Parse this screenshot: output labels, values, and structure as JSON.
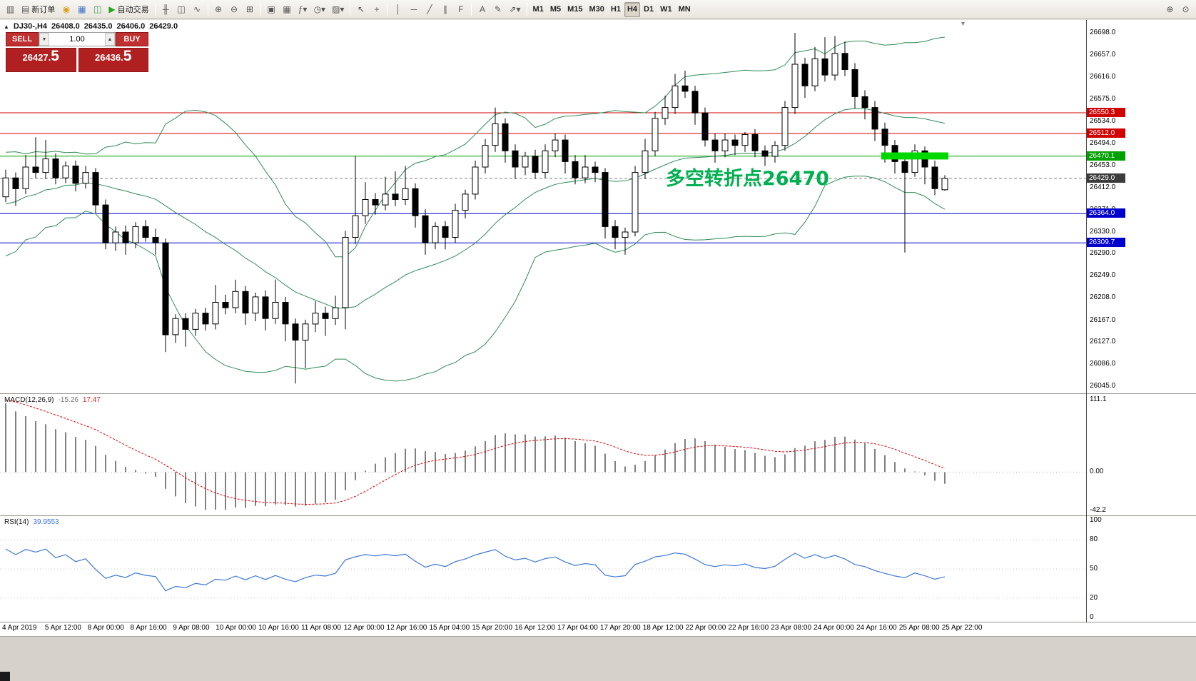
{
  "colors": {
    "window_bg": "#ece9e2",
    "pane_bg": "#ffffff",
    "bollinger": "#2e8b57",
    "macd_hist": "#808080",
    "macd_signal": "#e00000",
    "rsi_line": "#3c78d8",
    "one_click_red": "#c03030",
    "one_click_red_dark": "#b02020",
    "annotation_green": "#00b050",
    "highlight_green": "#00d800",
    "current_price_box": "#3c3c3c"
  },
  "toolbar": {
    "items": [
      {
        "name": "new-chart-button",
        "glyph": "▥"
      },
      {
        "name": "new-order-button",
        "glyph": "▤",
        "label": "新订单"
      },
      {
        "name": "alert-sound-button",
        "glyph": "◉",
        "accent": "#d8a020"
      },
      {
        "name": "market-watch-button",
        "glyph": "▦",
        "accent": "#3a6fc4"
      },
      {
        "name": "navigator-button",
        "glyph": "◫",
        "accent": "#3aa05a"
      },
      {
        "name": "autotrading-button",
        "glyph": "▶",
        "label": "自动交易",
        "accent": "#1fa51f"
      },
      {
        "type": "sep"
      },
      {
        "name": "bar-chart-type-button",
        "glyph": "╫"
      },
      {
        "name": "candlestick-chart-type-button",
        "glyph": "◫"
      },
      {
        "name": "line-chart-type-button",
        "glyph": "∿"
      },
      {
        "type": "sep"
      },
      {
        "name": "zoom-in-button",
        "glyph": "⊕"
      },
      {
        "name": "zoom-out-button",
        "glyph": "⊖"
      },
      {
        "name": "tile-windows-button",
        "glyph": "⊞"
      },
      {
        "type": "sep"
      },
      {
        "name": "cascade-windows-button",
        "glyph": "▣"
      },
      {
        "name": "arrange-windows-button",
        "glyph": "▦"
      },
      {
        "name": "indicators-button",
        "glyph": "ƒ▾"
      },
      {
        "name": "periods-button",
        "glyph": "◷▾"
      },
      {
        "name": "templates-button",
        "glyph": "▨▾"
      },
      {
        "type": "sep"
      },
      {
        "name": "cursor-button",
        "glyph": "↖"
      },
      {
        "name": "crosshair-button",
        "glyph": "+"
      },
      {
        "type": "sep"
      },
      {
        "name": "vertical-line-button",
        "glyph": "│"
      },
      {
        "name": "horizontal-line-button",
        "glyph": "─"
      },
      {
        "name": "trendline-button",
        "glyph": "╱"
      },
      {
        "name": "equidistant-channel-button",
        "glyph": "∥"
      },
      {
        "name": "fibonacci-button",
        "glyph": "F"
      },
      {
        "type": "sep"
      },
      {
        "name": "text-button",
        "glyph": "A"
      },
      {
        "name": "text-label-button",
        "glyph": "✎"
      },
      {
        "name": "arrows-button",
        "glyph": "⇗▾"
      },
      {
        "type": "sep"
      },
      {
        "name": "timeframe-m1-button",
        "label": "M1",
        "tf": true
      },
      {
        "name": "timeframe-m5-button",
        "label": "M5",
        "tf": true
      },
      {
        "name": "timeframe-m15-button",
        "label": "M15",
        "tf": true
      },
      {
        "name": "timeframe-m30-button",
        "label": "M30",
        "tf": true
      },
      {
        "name": "timeframe-h1-button",
        "label": "H1",
        "tf": true
      },
      {
        "name": "timeframe-h4-button",
        "label": "H4",
        "tf": true,
        "active": true
      },
      {
        "name": "timeframe-d1-button",
        "label": "D1",
        "tf": true
      },
      {
        "name": "timeframe-w1-button",
        "label": "W1",
        "tf": true
      },
      {
        "name": "timeframe-mn-button",
        "label": "MN",
        "tf": true
      }
    ],
    "right_items": [
      {
        "name": "symbol-search-button",
        "glyph": "⊕"
      },
      {
        "name": "magnifier-button",
        "glyph": "⊙"
      }
    ]
  },
  "chart_title": {
    "collapse_glyph": "▲",
    "symbol_period": "DJ30-,H4",
    "open": "26408.0",
    "high": "26435.0",
    "low": "26406.0",
    "close": "26429.0"
  },
  "one_click": {
    "sell_label": "SELL",
    "buy_label": "BUY",
    "lot_value": "1.00",
    "lot_down_glyph": "▼",
    "lot_up_glyph": "▲",
    "sell_price_main": "26427.",
    "sell_price_pips": "5",
    "buy_price_main": "26436.",
    "buy_price_pips": "5"
  },
  "scroll_marker_glyph": "▼",
  "chart_data": {
    "type": "candlestick",
    "symbol": "DJ30-",
    "period": "H4",
    "last_bar_ohlc": [
      "26408.0",
      "26435.0",
      "26406.0",
      "26429.0"
    ],
    "y_axis_ticks": [
      "26698.0",
      "26657.0",
      "26616.0",
      "26575.0",
      "26534.0",
      "26494.0",
      "26453.0",
      "26412.0",
      "26371.0",
      "26330.0",
      "26290.0",
      "26249.0",
      "26208.0",
      "26167.0",
      "26127.0",
      "26086.0",
      "26045.0"
    ],
    "y_range": {
      "max": 26698,
      "min": 26045
    },
    "x_labels": [
      "4 Apr 2019",
      "5 Apr 12:00",
      "8 Apr 00:00",
      "8 Apr 16:00",
      "9 Apr 08:00",
      "10 Apr 00:00",
      "10 Apr 16:00",
      "11 Apr 08:00",
      "12 Apr 00:00",
      "12 Apr 16:00",
      "15 Apr 04:00",
      "15 Apr 20:00",
      "16 Apr 12:00",
      "17 Apr 04:00",
      "17 Apr 20:00",
      "18 Apr 12:00",
      "22 Apr 00:00",
      "22 Apr 16:00",
      "23 Apr 08:00",
      "24 Apr 00:00",
      "24 Apr 16:00",
      "25 Apr 08:00",
      "25 Apr 22:00"
    ],
    "candles": [
      [
        26395,
        26445,
        26385,
        26430
      ],
      [
        26430,
        26440,
        26378,
        26410
      ],
      [
        26410,
        26472,
        26400,
        26450
      ],
      [
        26450,
        26505,
        26430,
        26440
      ],
      [
        26440,
        26500,
        26428,
        26465
      ],
      [
        26465,
        26475,
        26418,
        26430
      ],
      [
        26430,
        26460,
        26420,
        26452
      ],
      [
        26452,
        26462,
        26405,
        26420
      ],
      [
        26420,
        26452,
        26410,
        26440
      ],
      [
        26440,
        26448,
        26365,
        26380
      ],
      [
        26380,
        26390,
        26298,
        26310
      ],
      [
        26310,
        26340,
        26295,
        26330
      ],
      [
        26330,
        26342,
        26288,
        26310
      ],
      [
        26310,
        26348,
        26300,
        26340
      ],
      [
        26340,
        26352,
        26312,
        26320
      ],
      [
        26320,
        26336,
        26288,
        26310
      ],
      [
        26310,
        26318,
        26108,
        26140
      ],
      [
        26140,
        26178,
        26125,
        26170
      ],
      [
        26170,
        26180,
        26118,
        26150
      ],
      [
        26150,
        26188,
        26138,
        26180
      ],
      [
        26180,
        26190,
        26148,
        26160
      ],
      [
        26160,
        26232,
        26150,
        26200
      ],
      [
        26200,
        26214,
        26178,
        26190
      ],
      [
        26190,
        26242,
        26180,
        26220
      ],
      [
        26220,
        26230,
        26158,
        26180
      ],
      [
        26180,
        26218,
        26165,
        26210
      ],
      [
        26210,
        26222,
        26148,
        26170
      ],
      [
        26170,
        26242,
        26160,
        26200
      ],
      [
        26200,
        26210,
        26128,
        26160
      ],
      [
        26160,
        26170,
        26050,
        26130
      ],
      [
        26130,
        26168,
        26078,
        26160
      ],
      [
        26160,
        26202,
        26145,
        26180
      ],
      [
        26180,
        26192,
        26138,
        26170
      ],
      [
        26170,
        26212,
        26158,
        26190
      ],
      [
        26190,
        26332,
        26150,
        26320
      ],
      [
        26320,
        26470,
        26308,
        26360
      ],
      [
        26360,
        26422,
        26345,
        26390
      ],
      [
        26390,
        26402,
        26362,
        26380
      ],
      [
        26380,
        26432,
        26370,
        26400
      ],
      [
        26400,
        26442,
        26378,
        26390
      ],
      [
        26390,
        26452,
        26380,
        26410
      ],
      [
        26410,
        26420,
        26338,
        26360
      ],
      [
        26360,
        26372,
        26288,
        26310
      ],
      [
        26310,
        26348,
        26298,
        26340
      ],
      [
        26340,
        26350,
        26298,
        26320
      ],
      [
        26320,
        26382,
        26310,
        26370
      ],
      [
        26370,
        26408,
        26355,
        26400
      ],
      [
        26400,
        26462,
        26390,
        26450
      ],
      [
        26450,
        26502,
        26438,
        26490
      ],
      [
        26490,
        26560,
        26478,
        26530
      ],
      [
        26530,
        26540,
        26458,
        26480
      ],
      [
        26480,
        26492,
        26428,
        26450
      ],
      [
        26450,
        26478,
        26435,
        26470
      ],
      [
        26470,
        26482,
        26428,
        26440
      ],
      [
        26440,
        26492,
        26430,
        26480
      ],
      [
        26480,
        26512,
        26468,
        26500
      ],
      [
        26500,
        26510,
        26438,
        26460
      ],
      [
        26460,
        26472,
        26418,
        26430
      ],
      [
        26430,
        26472,
        26420,
        26450
      ],
      [
        26450,
        26460,
        26422,
        26440
      ],
      [
        26440,
        26448,
        26318,
        26340
      ],
      [
        26340,
        26352,
        26298,
        26320
      ],
      [
        26320,
        26338,
        26288,
        26330
      ],
      [
        26330,
        26452,
        26322,
        26440
      ],
      [
        26440,
        26502,
        26428,
        26480
      ],
      [
        26480,
        26552,
        26470,
        26540
      ],
      [
        26540,
        26582,
        26528,
        26560
      ],
      [
        26560,
        26622,
        26548,
        26600
      ],
      [
        26600,
        26628,
        26578,
        26590
      ],
      [
        26590,
        26600,
        26528,
        26550
      ],
      [
        26550,
        26560,
        26488,
        26500
      ],
      [
        26500,
        26512,
        26458,
        26480
      ],
      [
        26480,
        26512,
        26468,
        26500
      ],
      [
        26500,
        26510,
        26472,
        26490
      ],
      [
        26490,
        26515,
        26478,
        26510
      ],
      [
        26510,
        26520,
        26468,
        26480
      ],
      [
        26480,
        26490,
        26452,
        26470
      ],
      [
        26470,
        26498,
        26458,
        26490
      ],
      [
        26490,
        26572,
        26480,
        26560
      ],
      [
        26560,
        26698,
        26548,
        26640
      ],
      [
        26640,
        26652,
        26578,
        26600
      ],
      [
        26600,
        26672,
        26590,
        26650
      ],
      [
        26650,
        26690,
        26608,
        26620
      ],
      [
        26620,
        26692,
        26610,
        26660
      ],
      [
        26660,
        26682,
        26618,
        26630
      ],
      [
        26630,
        26642,
        26558,
        26580
      ],
      [
        26580,
        26592,
        26538,
        26560
      ],
      [
        26560,
        26572,
        26498,
        26520
      ],
      [
        26520,
        26532,
        26458,
        26490
      ],
      [
        26490,
        26500,
        26438,
        26460
      ],
      [
        26460,
        26470,
        26292,
        26440
      ],
      [
        26440,
        26492,
        26432,
        26480
      ],
      [
        26480,
        26488,
        26418,
        26450
      ],
      [
        26450,
        26462,
        26398,
        26410
      ],
      [
        26408,
        26435,
        26406,
        26429
      ]
    ],
    "bollinger": {
      "period": 20,
      "deviation": 2,
      "warmup_closes": [
        26250,
        26320,
        26270,
        26350,
        26300,
        26380,
        26330,
        26410,
        26350,
        26430,
        26380,
        26440,
        26390,
        26450,
        26400,
        26430,
        26380,
        26420,
        26370,
        26400
      ]
    },
    "price_markers": [
      {
        "label": "26550.3",
        "value": 26550.3,
        "kind": "resistance",
        "box_color": "#d10000",
        "line_color": "#d10000",
        "line": "solid"
      },
      {
        "label": "26512.0",
        "value": 26512.0,
        "kind": "resistance",
        "box_color": "#d10000",
        "line_color": "#d10000",
        "line": "solid"
      },
      {
        "label": "26470.1",
        "value": 26470.1,
        "kind": "pivot",
        "box_color": "#00a000",
        "line_color": "#00a000",
        "line": "solid"
      },
      {
        "label": "26429.0",
        "value": 26429.0,
        "kind": "current-price",
        "box_color": "#3c3c3c",
        "line_color": "#808080",
        "line": "dashed"
      },
      {
        "label": "26364.0",
        "value": 26364.0,
        "kind": "support",
        "box_color": "#0000cd",
        "line_color": "#0000cd",
        "line": "solid"
      },
      {
        "label": "26309.7",
        "value": 26309.7,
        "kind": "support",
        "box_color": "#0000cd",
        "line_color": "#0000cd",
        "line": "solid"
      }
    ],
    "highlight_zone": {
      "from_bar": 88,
      "to_bar": 94,
      "price_top": 26477,
      "price_bottom": 26464
    },
    "annotation": {
      "text": "多空转折点26470"
    },
    "indicators": {
      "macd": {
        "label": "MACD(12,26,9)",
        "value_main": "-15.26",
        "value_signal": "17.47",
        "fast": 12,
        "slow": 26,
        "signal": 9,
        "scale_top": "111.1",
        "scale_zero": "0.00",
        "scale_bottom": "-42.2",
        "seed": {
          "ema_fast": 26470,
          "ema_slow": 26360,
          "signal": 105
        }
      },
      "rsi": {
        "label": "RSI(14)",
        "value": "39.9553",
        "period": 14,
        "levels": [
          80,
          50,
          20
        ],
        "scale_labels": [
          "100",
          "80",
          "50",
          "20",
          "0"
        ],
        "seed": {
          "avg_gain": 12,
          "avg_loss": 5
        }
      }
    }
  }
}
